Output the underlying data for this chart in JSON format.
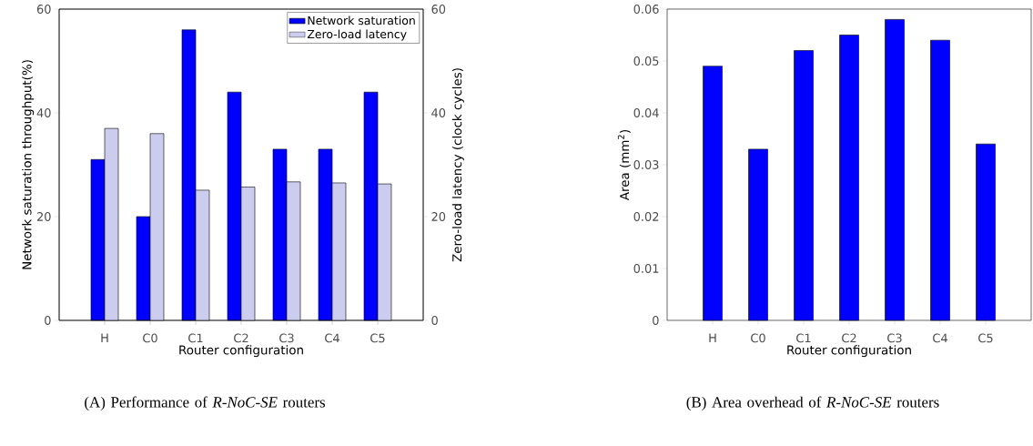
{
  "chart_data": [
    {
      "type": "bar",
      "xlabel": "Router configuration",
      "ylabel": "Network saturation throughput(%)",
      "y2label": "Zero-load latency (clock cycles)",
      "categories": [
        "H",
        "C0",
        "C1",
        "C2",
        "C3",
        "C4",
        "C5"
      ],
      "series": [
        {
          "name": "Network saturation",
          "color": "#0000ff",
          "values": [
            31,
            20,
            56,
            44,
            33,
            33,
            44
          ]
        },
        {
          "name": "Zero-load latency",
          "color": "#ccccee",
          "axis": "y2",
          "values": [
            37,
            36,
            25.1,
            25.7,
            26.7,
            26.5,
            26.3
          ]
        }
      ],
      "ylim": [
        0,
        60
      ],
      "yticks": [
        0,
        20,
        40,
        60
      ],
      "y2lim": [
        0,
        60
      ],
      "y2ticks": [
        0,
        20,
        40,
        60
      ],
      "legend": "top right",
      "annotations": [
        "(A) Performance of *R-NoC-SE* routers"
      ]
    },
    {
      "type": "bar",
      "xlabel": "Router configuration",
      "ylabel": "Area (mm$^{2}$)",
      "categories": [
        "H",
        "C0",
        "C1",
        "C2",
        "C3",
        "C4",
        "C5"
      ],
      "values": [
        0.049,
        0.033,
        0.052,
        0.055,
        0.058,
        0.054,
        0.034
      ],
      "color": "#0000ff",
      "ylim": [
        0,
        0.06
      ],
      "yticks": [
        0,
        0.01,
        0.02,
        0.03,
        0.04,
        0.05,
        0.06
      ],
      "annotations": [
        "(B) Area overhead of *R-NoC-SE* routers"
      ]
    }
  ]
}
